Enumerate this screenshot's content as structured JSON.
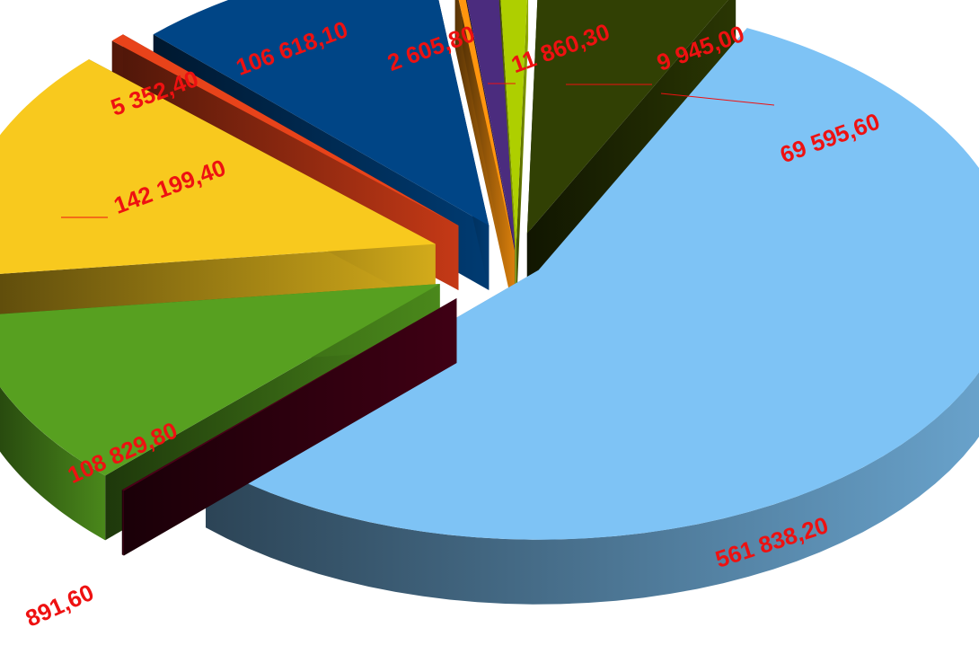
{
  "chart_data": {
    "type": "pie",
    "style": "3d-exploded",
    "title": "",
    "labels_shown": "values",
    "slices": [
      {
        "value_label": "561 838,20",
        "value": 561838.2,
        "color": "#7ec3f5"
      },
      {
        "value_label": "891,60",
        "value": 891.6,
        "color": "#4a0018"
      },
      {
        "value_label": "108 829,80",
        "value": 108829.8,
        "color": "#57a020"
      },
      {
        "value_label": "142 199,40",
        "value": 142199.4,
        "color": "#f8c91e"
      },
      {
        "value_label": "5 352,40",
        "value": 5352.4,
        "color": "#e8431a"
      },
      {
        "value_label": "106 618,10",
        "value": 106618.1,
        "color": "#004586"
      },
      {
        "value_label": "2 605,80",
        "value": 2605.8,
        "color": "#ff950e"
      },
      {
        "value_label": "11 860,30",
        "value": 11860.3,
        "color": "#4b2c7e"
      },
      {
        "value_label": "9 945,00",
        "value": 9945.0,
        "color": "#aecf00"
      },
      {
        "value_label": "69 595,60",
        "value": 69595.6,
        "color": "#314004"
      }
    ]
  }
}
